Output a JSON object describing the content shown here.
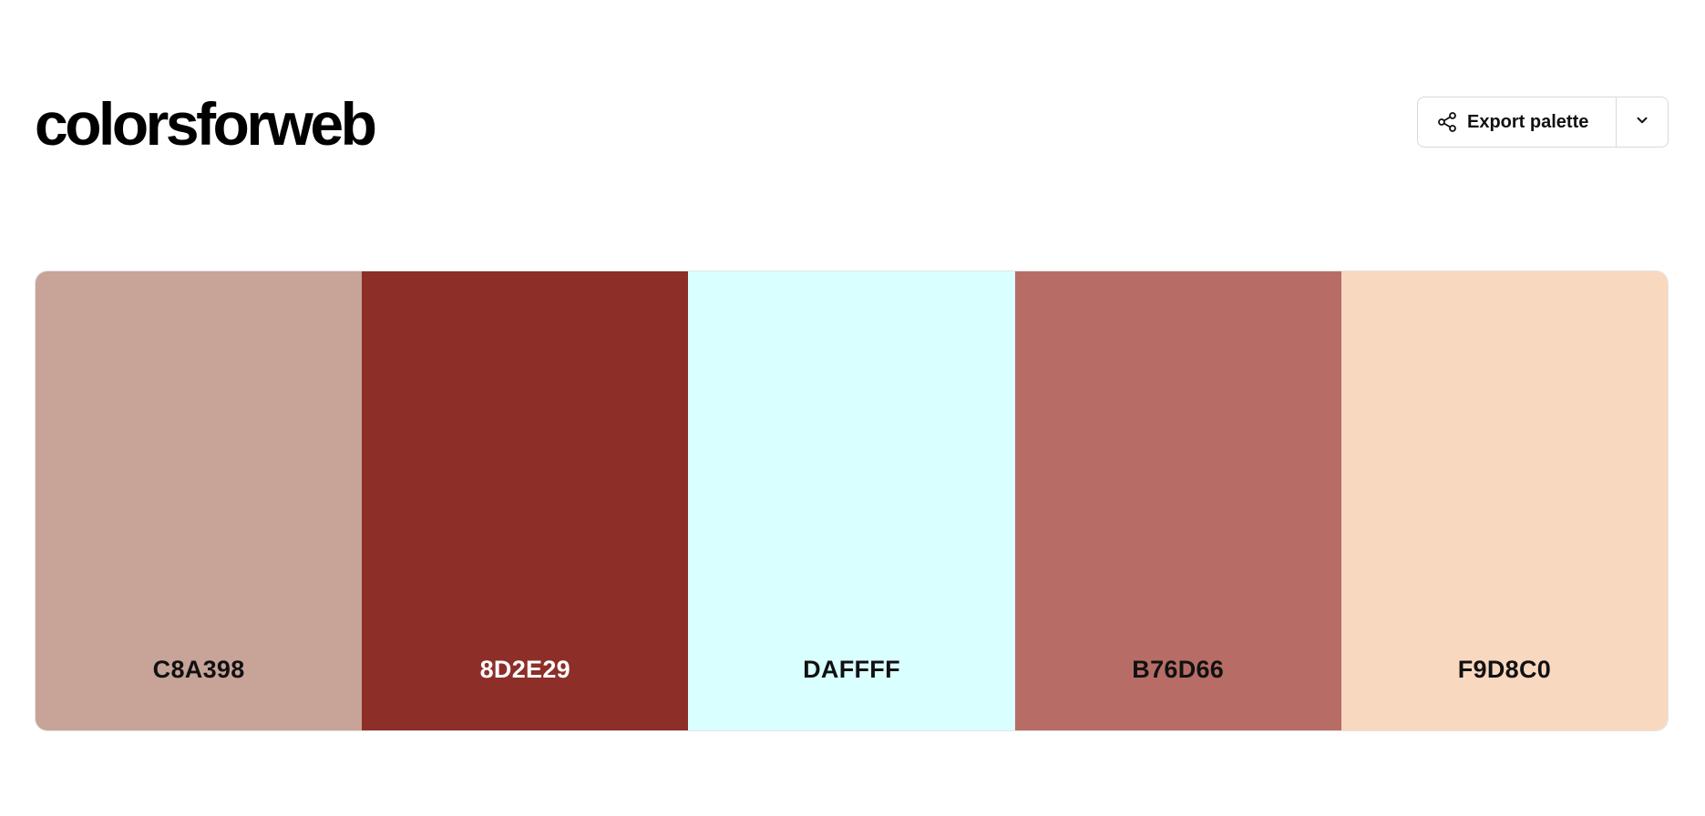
{
  "brand": {
    "logo_text": "colorsforweb"
  },
  "toolbar": {
    "export_label": "Export palette",
    "export_icon": "share-icon",
    "dropdown_icon": "chevron-down-icon"
  },
  "palette": {
    "swatches": [
      {
        "hex": "C8A398",
        "color": "#C8A398",
        "text_color": "#111111"
      },
      {
        "hex": "8D2E29",
        "color": "#8D2E29",
        "text_color": "#FFFFFF"
      },
      {
        "hex": "DAFFFF",
        "color": "#DAFFFF",
        "text_color": "#111111"
      },
      {
        "hex": "B76D66",
        "color": "#B76D66",
        "text_color": "#111111"
      },
      {
        "hex": "F9D8C0",
        "color": "#F9D8C0",
        "text_color": "#111111"
      }
    ]
  }
}
